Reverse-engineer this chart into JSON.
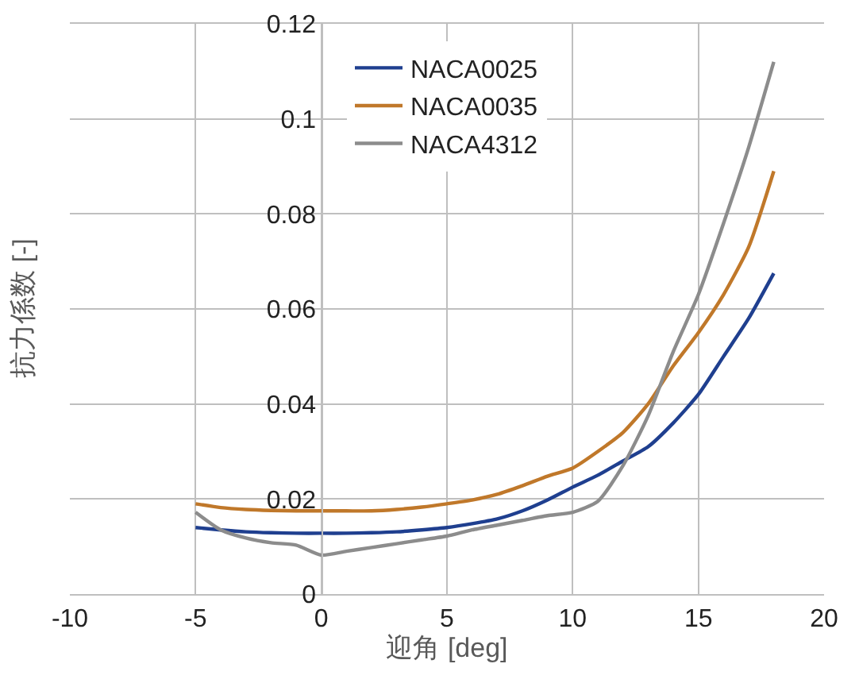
{
  "chart_data": {
    "type": "line",
    "xlabel": "迎角 [deg]",
    "ylabel": "抗力係数 [-]",
    "x": [
      -5,
      -4,
      -3,
      -2,
      -1,
      0,
      1,
      2,
      3,
      4,
      5,
      6,
      7,
      8,
      9,
      10,
      11,
      12,
      13,
      14,
      15,
      16,
      17,
      18
    ],
    "series": [
      {
        "name": "NACA0025",
        "color": "#1f3f8f",
        "values": [
          0.014,
          0.0135,
          0.0131,
          0.0129,
          0.0128,
          0.0128,
          0.0128,
          0.0129,
          0.0131,
          0.0135,
          0.014,
          0.0148,
          0.0158,
          0.0175,
          0.0198,
          0.0225,
          0.025,
          0.028,
          0.031,
          0.036,
          0.042,
          0.05,
          0.058,
          0.0675
        ]
      },
      {
        "name": "NACA0035",
        "color": "#c0782a",
        "values": [
          0.019,
          0.0182,
          0.0178,
          0.0176,
          0.0175,
          0.0175,
          0.0175,
          0.0175,
          0.0178,
          0.0183,
          0.019,
          0.0198,
          0.021,
          0.0228,
          0.0248,
          0.0265,
          0.03,
          0.034,
          0.04,
          0.048,
          0.055,
          0.063,
          0.073,
          0.089
        ]
      },
      {
        "name": "NACA4312",
        "color": "#8c8c8c",
        "values": [
          0.0172,
          0.0135,
          0.0118,
          0.0108,
          0.0103,
          0.0082,
          0.009,
          0.0098,
          0.0106,
          0.0114,
          0.0122,
          0.0135,
          0.0145,
          0.0155,
          0.0165,
          0.0172,
          0.0195,
          0.027,
          0.0375,
          0.051,
          0.063,
          0.078,
          0.094,
          0.112
        ]
      }
    ],
    "xlim": [
      -10,
      20
    ],
    "xticks": [
      -10,
      -5,
      0,
      5,
      10,
      15,
      20
    ],
    "ylim": [
      0,
      0.12
    ],
    "yticks": [
      0,
      0.02,
      0.04,
      0.06,
      0.08,
      0.1,
      0.12
    ],
    "grid": true,
    "legend": "top",
    "marker": "none",
    "line_style": "solid"
  }
}
